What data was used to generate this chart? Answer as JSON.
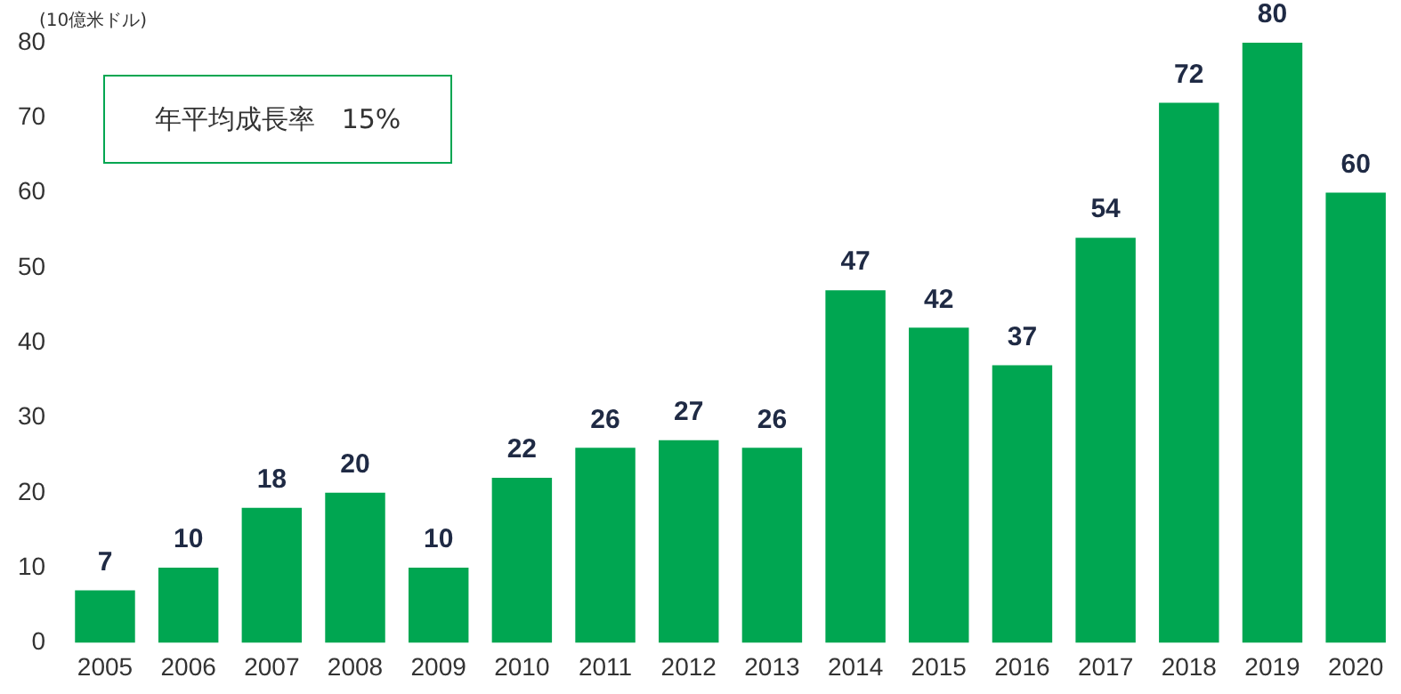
{
  "chart_data": {
    "type": "bar",
    "ylabel": "(10億米ドル)",
    "annotations": [
      "年平均成長率　15%"
    ],
    "categories": [
      "2005",
      "2006",
      "2007",
      "2008",
      "2009",
      "2010",
      "2011",
      "2012",
      "2013",
      "2014",
      "2015",
      "2016",
      "2017",
      "2018",
      "2019",
      "2020"
    ],
    "values": [
      7,
      10,
      18,
      20,
      10,
      22,
      26,
      27,
      26,
      47,
      42,
      37,
      54,
      72,
      80,
      60
    ],
    "color": "#00a651",
    "ylim": [
      0,
      80
    ],
    "yticks": [
      0,
      10,
      20,
      30,
      40,
      50,
      60,
      70,
      80
    ],
    "grid": false,
    "legend": false,
    "data_labels": true
  }
}
